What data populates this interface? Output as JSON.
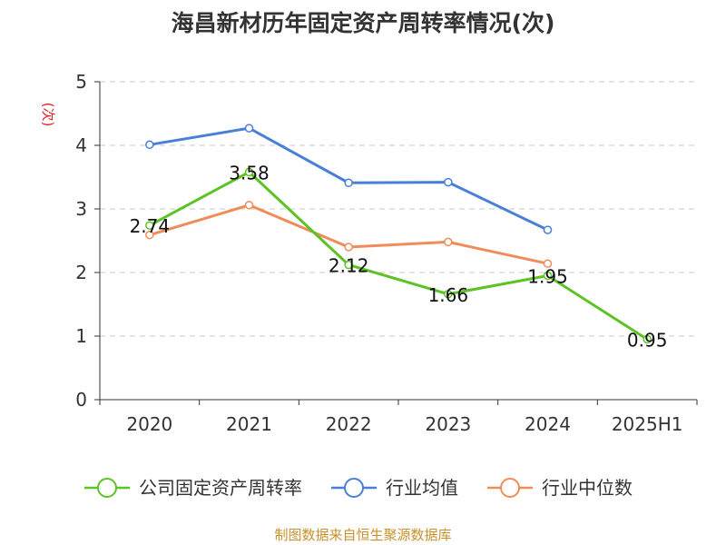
{
  "chart_data": {
    "type": "line",
    "title": "海昌新材历年固定资产周转率情况(次)",
    "ylabel": "(次)",
    "xlabel": "",
    "categories": [
      "2020",
      "2021",
      "2022",
      "2023",
      "2024",
      "2025H1"
    ],
    "ylim": [
      0,
      5
    ],
    "yticks": [
      0,
      1,
      2,
      3,
      4,
      5
    ],
    "grid": true,
    "legend_position": "bottom",
    "series": [
      {
        "name": "公司固定资产周转率",
        "color": "#5cc325",
        "values": [
          2.74,
          3.58,
          2.12,
          1.66,
          1.95,
          0.95
        ],
        "labels": [
          "2.74",
          "3.58",
          "2.12",
          "1.66",
          "1.95",
          "0.95"
        ]
      },
      {
        "name": "行业均值",
        "color": "#4a7fd8",
        "values": [
          4.01,
          4.27,
          3.41,
          3.42,
          2.67,
          null
        ]
      },
      {
        "name": "行业中位数",
        "color": "#f08c5a",
        "values": [
          2.59,
          3.06,
          2.4,
          2.48,
          2.14,
          null
        ]
      }
    ]
  },
  "source_note": "制图数据来自恒生聚源数据库"
}
